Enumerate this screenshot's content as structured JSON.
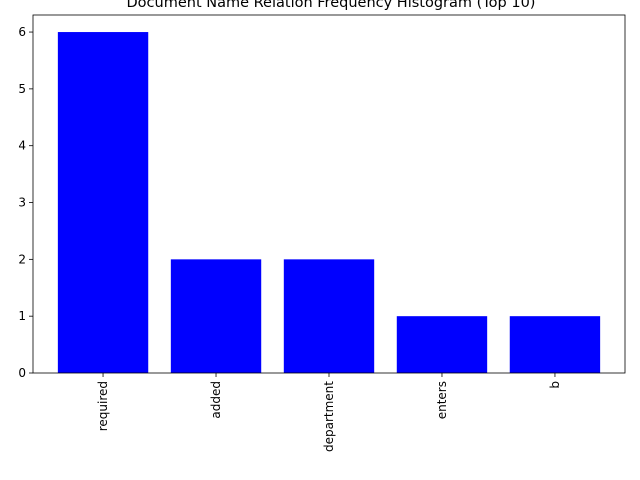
{
  "chart_data": {
    "type": "bar",
    "title": "Document Name  Relation Frequency Histogram (Top 10)",
    "xlabel": "",
    "ylabel": "",
    "categories": [
      "required",
      "added",
      "department",
      "enters",
      "b"
    ],
    "values": [
      6,
      2,
      2,
      1,
      1
    ],
    "ylim": [
      0,
      6.3
    ],
    "yticks": [
      0,
      1,
      2,
      3,
      4,
      5,
      6
    ],
    "bar_color": "#0000ff",
    "grid": false,
    "xtick_rotation": "vertical"
  }
}
